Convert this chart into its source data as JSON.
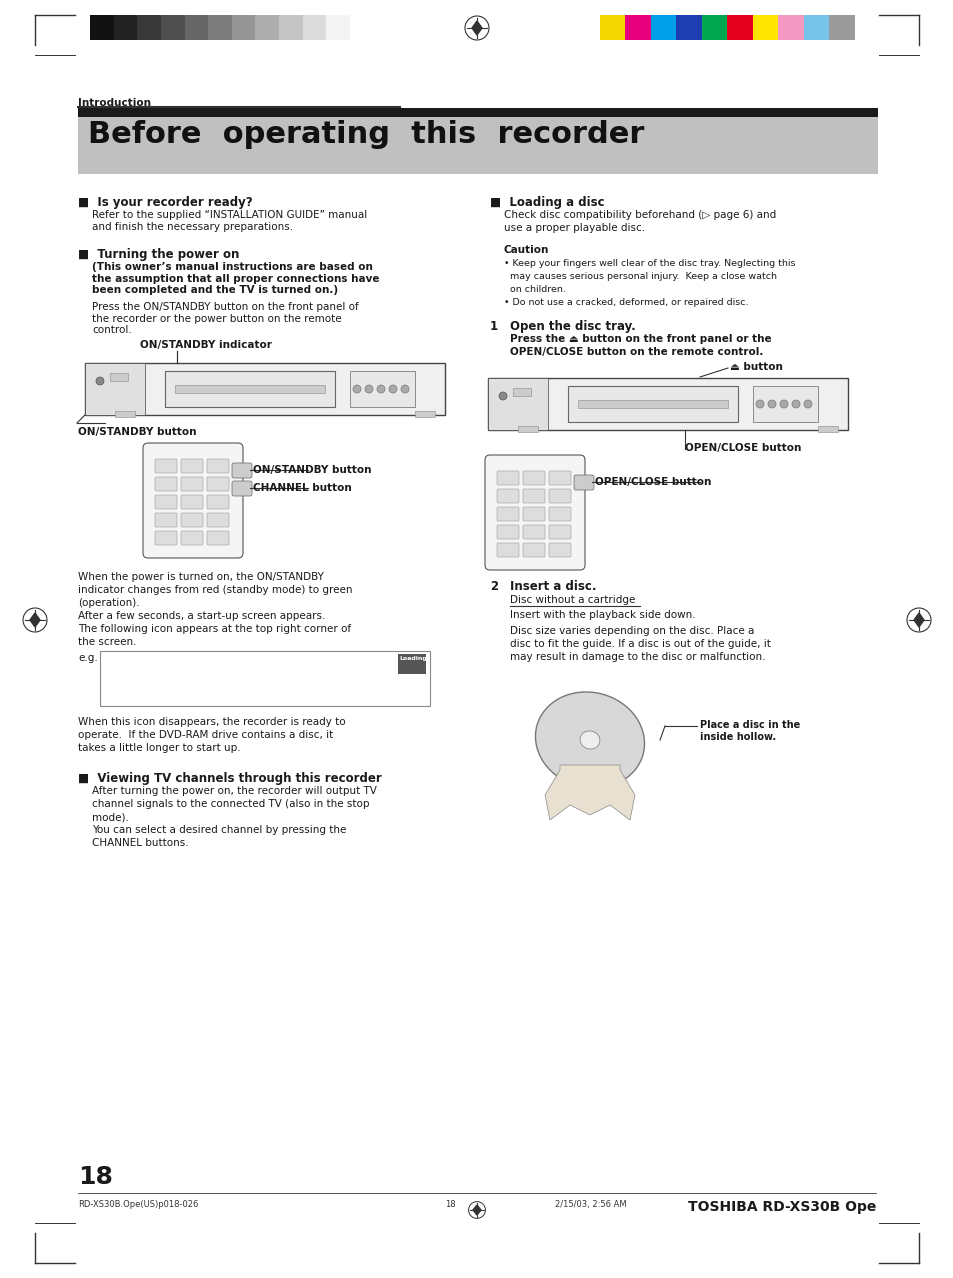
{
  "page_bg": "#ffffff",
  "page_width": 9.54,
  "page_height": 12.78,
  "dpi": 100,
  "top_bar_colors_left": [
    "#111111",
    "#222222",
    "#383838",
    "#4f4f4f",
    "#666666",
    "#7d7d7d",
    "#959595",
    "#adadad",
    "#c5c5c5",
    "#dcdcdc",
    "#f4f4f4"
  ],
  "top_bar_colors_right": [
    "#f5d800",
    "#e6007e",
    "#00a0e9",
    "#1e3eb4",
    "#00a650",
    "#e4001e",
    "#ffe600",
    "#f49ac2",
    "#76c5e8",
    "#9b9b9b"
  ],
  "intro_label": "Introduction",
  "title_text": "Before  operating  this  recorder",
  "section1_title": "■  Is your recorder ready?",
  "section1_body": "Refer to the supplied “INSTALLATION GUIDE” manual\nand finish the necessary preparations.",
  "section2_title": "■  Turning the power on",
  "section2_bold": "(This owner’s manual instructions are based on\nthe assumption that all proper connections have\nbeen completed and the TV is turned on.)",
  "section2_body": "Press the ON/STANDBY button on the front panel of\nthe recorder or the power button on the remote\ncontrol.",
  "label_standby_indicator": "ON/STANDBY indicator",
  "label_standby_button": "ON/STANDBY button",
  "label_on_standby_btn": "ON/STANDBY button",
  "label_channel_btn": "CHANNEL button",
  "power_text1": "When the power is turned on, the ON/STANDBY",
  "power_text2": "indicator changes from red (standby mode) to green",
  "power_text3": "(operation).",
  "power_text4": "After a few seconds, a start-up screen appears.",
  "power_text5": "The following icon appears at the top right corner of",
  "power_text6": "the screen.",
  "eg_label": "e.g.",
  "disappear_text1": "When this icon disappears, the recorder is ready to",
  "disappear_text2": "operate.  If the DVD-RAM drive contains a disc, it",
  "disappear_text3": "takes a little longer to start up.",
  "section3_title": "■  Viewing TV channels through this recorder",
  "section3_body1": "After turning the power on, the recorder will output TV",
  "section3_body2": "channel signals to the connected TV (also in the stop",
  "section3_body3": "mode).",
  "section3_body4": "You can select a desired channel by pressing the",
  "section3_body5": "CHANNEL buttons.",
  "col2_section1_title": "■  Loading a disc",
  "col2_section1_body1": "Check disc compatibility beforehand (▷ page 6) and",
  "col2_section1_body2": "use a proper playable disc.",
  "caution_title": "Caution",
  "caution_body1": "• Keep your fingers well clear of the disc tray. Neglecting this",
  "caution_body2": "  may causes serious personal injury.  Keep a close watch",
  "caution_body3": "  on children.",
  "caution_body4": "• Do not use a cracked, deformed, or repaired disc.",
  "step1_num": "1",
  "step1_title": "Open the disc tray.",
  "step1_body1": "Press the ⏏ button on the front panel or the",
  "step1_body2": "OPEN/CLOSE button on the remote control.",
  "label_eject_btn": "⏏ button",
  "label_open_close": "OPEN/CLOSE button",
  "step2_num": "2",
  "step2_title": "Insert a disc.",
  "step2_underline": "Disc without a cartridge",
  "step2_body1": "Insert with the playback side down.",
  "step2_body2": "Disc size varies depending on the disc. Place a",
  "step2_body3": "disc to fit the guide. If a disc is out of the guide, it",
  "step2_body4": "may result in damage to the disc or malfunction.",
  "label_place_disc": "Place a disc in the\ninside hollow.",
  "page_number": "18",
  "footer_left": "RD-XS30B.Ope(US)p018-026",
  "footer_center_page": "18",
  "footer_date": "2/15/03, 2:56 AM",
  "footer_right": "TOSHIBA RD-XS30B Ope"
}
